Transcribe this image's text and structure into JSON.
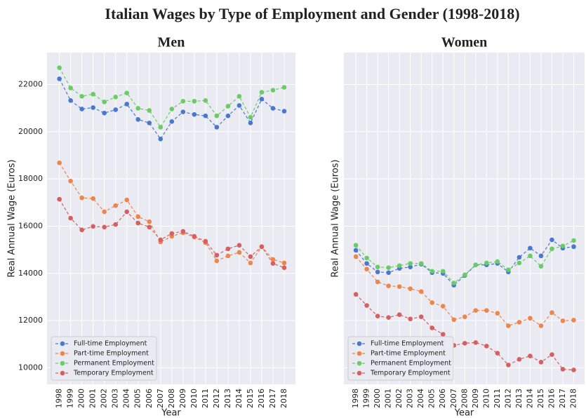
{
  "title": "Italian Wages by Type of Employment and Gender (1998-2018)",
  "chart_data": [
    {
      "type": "line",
      "title": "Men",
      "x_label": "Year",
      "y_label": "Real Annual Wage (Euros)",
      "x": [
        1998,
        1999,
        2000,
        2001,
        2002,
        2003,
        2004,
        2005,
        2006,
        2007,
        2008,
        2009,
        2010,
        2011,
        2012,
        2013,
        2014,
        2015,
        2016,
        2017,
        2018
      ],
      "xlim": [
        1996.9,
        2019
      ],
      "xticks": [
        1998,
        1999,
        2000,
        2001,
        2002,
        2003,
        2004,
        2005,
        2006,
        2007,
        2008,
        2009,
        2010,
        2011,
        2012,
        2013,
        2014,
        2015,
        2016,
        2017,
        2018
      ],
      "ylim": [
        9300,
        23350
      ],
      "yticks": [
        10000,
        12000,
        14000,
        16000,
        18000,
        20000,
        22000
      ],
      "show_ytick_labels": true,
      "grid": true,
      "legend": "lower left",
      "series": [
        {
          "name": "Full-time Employment",
          "color": "#4878cf",
          "values": [
            22240,
            21320,
            20960,
            21020,
            20790,
            20930,
            21170,
            20520,
            20370,
            19690,
            20430,
            20840,
            20730,
            20670,
            20190,
            20670,
            21110,
            20370,
            21380,
            20990,
            20870
          ]
        },
        {
          "name": "Part-time Employment",
          "color": "#ee854a",
          "values": [
            18680,
            17910,
            17200,
            17170,
            16610,
            16870,
            17110,
            16400,
            16190,
            15330,
            15570,
            15720,
            15540,
            15300,
            14530,
            14740,
            14890,
            14440,
            15130,
            14590,
            14440
          ]
        },
        {
          "name": "Permanent Employment",
          "color": "#6acc64",
          "values": [
            22710,
            21850,
            21500,
            21590,
            21260,
            21470,
            21640,
            20990,
            20900,
            20190,
            20960,
            21290,
            21290,
            21320,
            20670,
            21080,
            21500,
            20610,
            21670,
            21760,
            21880
          ]
        },
        {
          "name": "Temporary Employment",
          "color": "#d65f5f",
          "values": [
            17140,
            16340,
            15840,
            15990,
            15960,
            16070,
            16610,
            16130,
            15960,
            15420,
            15690,
            15780,
            15570,
            15360,
            14770,
            15040,
            15190,
            14710,
            15130,
            14420,
            14240
          ]
        }
      ]
    },
    {
      "type": "line",
      "title": "Women",
      "x_label": "Year",
      "y_label": "Real Annual Wage (Euros)",
      "x": [
        1998,
        1999,
        2000,
        2001,
        2002,
        2003,
        2004,
        2005,
        2006,
        2007,
        2008,
        2009,
        2010,
        2011,
        2012,
        2013,
        2014,
        2015,
        2016,
        2017,
        2018
      ],
      "xlim": [
        1996.9,
        2019
      ],
      "xticks": [
        1998,
        1999,
        2000,
        2001,
        2002,
        2003,
        2004,
        2005,
        2006,
        2007,
        2008,
        2009,
        2010,
        2011,
        2012,
        2013,
        2014,
        2015,
        2016,
        2017,
        2018
      ],
      "ylim": [
        9300,
        23350
      ],
      "yticks": [
        10000,
        12000,
        14000,
        16000,
        18000,
        20000,
        22000
      ],
      "show_ytick_labels": false,
      "grid": true,
      "legend": "lower left",
      "series": [
        {
          "name": "Full-time Employment",
          "color": "#4878cf",
          "values": [
            14980,
            14420,
            14060,
            14030,
            14210,
            14270,
            14390,
            14030,
            14000,
            13500,
            13910,
            14360,
            14360,
            14420,
            14060,
            14680,
            15070,
            14740,
            15420,
            15070,
            15130
          ]
        },
        {
          "name": "Part-time Employment",
          "color": "#ee854a",
          "values": [
            14710,
            14180,
            13640,
            13470,
            13440,
            13350,
            13230,
            12760,
            12610,
            12040,
            12160,
            12430,
            12430,
            12310,
            11780,
            11930,
            12100,
            11780,
            12340,
            11990,
            12020
          ]
        },
        {
          "name": "Permanent Employment",
          "color": "#6acc64",
          "values": [
            15190,
            14650,
            14270,
            14240,
            14330,
            14420,
            14420,
            14090,
            14090,
            13590,
            13940,
            14360,
            14440,
            14500,
            14150,
            14440,
            14740,
            14300,
            15040,
            15160,
            15390
          ]
        },
        {
          "name": "Temporary Employment",
          "color": "#d65f5f",
          "values": [
            13110,
            12640,
            12190,
            12130,
            12250,
            12070,
            12160,
            11690,
            11420,
            10950,
            11040,
            11070,
            10920,
            10620,
            10120,
            10360,
            10500,
            10240,
            10560,
            9940,
            9910
          ]
        }
      ]
    }
  ]
}
